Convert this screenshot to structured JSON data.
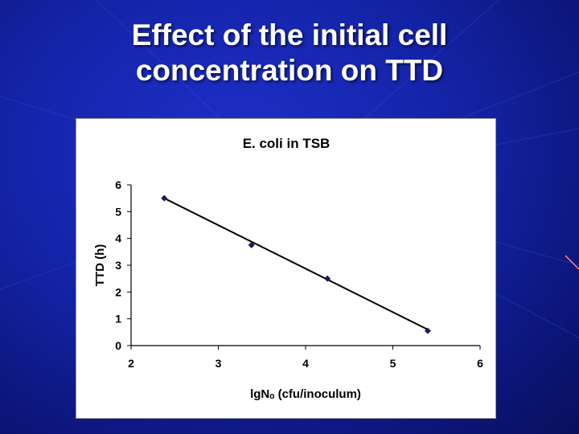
{
  "slide": {
    "title_line1": "Effect of the initial cell",
    "title_line2": "concentration on TTD",
    "background_color": "#1424a8",
    "title_color": "#ffffff"
  },
  "chart_data": {
    "type": "scatter",
    "title": "E. coli in TSB",
    "xlabel": "lgNₒ (cfu/inoculum)",
    "ylabel": "TTD (h)",
    "xlim": [
      2,
      6
    ],
    "ylim": [
      0,
      6
    ],
    "x_ticks": [
      "2",
      "3",
      "4",
      "5",
      "6"
    ],
    "y_ticks": [
      "0",
      "1",
      "2",
      "3",
      "4",
      "5",
      "6"
    ],
    "grid": false,
    "legend": "none",
    "series": [
      {
        "x": [
          2.38,
          3.38,
          4.25,
          5.4
        ],
        "y": [
          5.5,
          3.75,
          2.5,
          0.55
        ],
        "marker": "diamond",
        "color": "#1a1a5e"
      }
    ],
    "trendline": {
      "x": [
        2.38,
        5.4
      ],
      "y": [
        5.5,
        0.6
      ],
      "color": "#000000"
    }
  }
}
